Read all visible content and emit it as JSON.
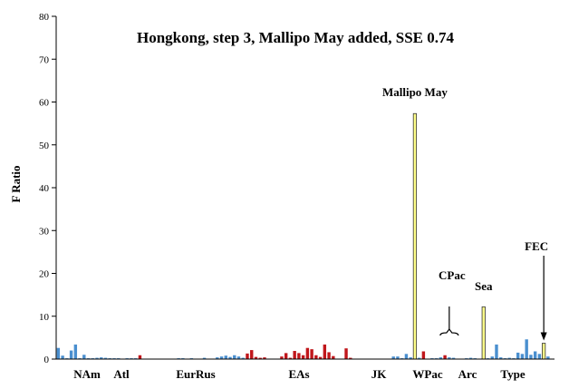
{
  "chart_data": {
    "type": "bar",
    "title": "Hongkong, step 3, Mallipo May added, SSE 0.74",
    "ylabel": "F Ratio",
    "xlabel": "",
    "ylim": [
      0,
      80
    ],
    "yticks": [
      0,
      10,
      20,
      30,
      40,
      50,
      60,
      70,
      80
    ],
    "grid": false,
    "colors": {
      "blue": "#4a8fcf",
      "red": "#c0161b",
      "yellow": "#ffff8a",
      "edge": "#333333"
    },
    "region_labels": [
      "NAm",
      "Atl",
      "EurRus",
      "EAs",
      "JK",
      "WPac",
      "Arc",
      "Type"
    ],
    "annotations": [
      {
        "text": "Mallipo May",
        "target": "Mallipo May"
      },
      {
        "text": "CPac",
        "target": "CPac"
      },
      {
        "text": "Sea",
        "target": "Sea"
      },
      {
        "text": "FEC",
        "target": "FEC"
      }
    ],
    "bars": [
      {
        "i": 0,
        "v": 2.6,
        "c": "blue"
      },
      {
        "i": 1,
        "v": 0.8,
        "c": "blue"
      },
      {
        "i": 2,
        "v": 0.2,
        "c": "blue"
      },
      {
        "i": 3,
        "v": 2.0,
        "c": "blue"
      },
      {
        "i": 4,
        "v": 3.4,
        "c": "blue"
      },
      {
        "i": 5,
        "v": 0.2,
        "c": "blue"
      },
      {
        "i": 6,
        "v": 1.0,
        "c": "blue"
      },
      {
        "i": 7,
        "v": 0.2,
        "c": "blue"
      },
      {
        "i": 8,
        "v": 0.2,
        "c": "blue"
      },
      {
        "i": 9,
        "v": 0.3,
        "c": "blue"
      },
      {
        "i": 10,
        "v": 0.4,
        "c": "blue"
      },
      {
        "i": 11,
        "v": 0.3,
        "c": "blue"
      },
      {
        "i": 12,
        "v": 0.2,
        "c": "blue"
      },
      {
        "i": 13,
        "v": 0.2,
        "c": "blue"
      },
      {
        "i": 14,
        "v": 0.2,
        "c": "blue"
      },
      {
        "i": 15,
        "v": 0.1,
        "c": "blue"
      },
      {
        "i": 16,
        "v": 0.2,
        "c": "blue"
      },
      {
        "i": 17,
        "v": 0.2,
        "c": "blue"
      },
      {
        "i": 18,
        "v": 0.2,
        "c": "blue"
      },
      {
        "i": 19,
        "v": 0.9,
        "c": "red"
      },
      {
        "i": 28,
        "v": 0.2,
        "c": "blue"
      },
      {
        "i": 29,
        "v": 0.2,
        "c": "blue"
      },
      {
        "i": 30,
        "v": 0.1,
        "c": "blue"
      },
      {
        "i": 31,
        "v": 0.2,
        "c": "blue"
      },
      {
        "i": 34,
        "v": 0.3,
        "c": "blue"
      },
      {
        "i": 37,
        "v": 0.4,
        "c": "blue"
      },
      {
        "i": 38,
        "v": 0.6,
        "c": "blue"
      },
      {
        "i": 39,
        "v": 0.8,
        "c": "blue"
      },
      {
        "i": 40,
        "v": 0.5,
        "c": "blue"
      },
      {
        "i": 41,
        "v": 0.9,
        "c": "blue"
      },
      {
        "i": 42,
        "v": 0.6,
        "c": "blue"
      },
      {
        "i": 43,
        "v": 0.3,
        "c": "blue"
      },
      {
        "i": 44,
        "v": 1.3,
        "c": "red"
      },
      {
        "i": 45,
        "v": 2.1,
        "c": "red"
      },
      {
        "i": 46,
        "v": 0.5,
        "c": "red"
      },
      {
        "i": 47,
        "v": 0.3,
        "c": "red"
      },
      {
        "i": 48,
        "v": 0.4,
        "c": "red"
      },
      {
        "i": 52,
        "v": 0.6,
        "c": "red"
      },
      {
        "i": 53,
        "v": 1.4,
        "c": "red"
      },
      {
        "i": 54,
        "v": 0.3,
        "c": "red"
      },
      {
        "i": 55,
        "v": 1.9,
        "c": "red"
      },
      {
        "i": 56,
        "v": 1.4,
        "c": "red"
      },
      {
        "i": 57,
        "v": 0.9,
        "c": "red"
      },
      {
        "i": 58,
        "v": 2.6,
        "c": "red"
      },
      {
        "i": 59,
        "v": 2.3,
        "c": "red"
      },
      {
        "i": 60,
        "v": 0.9,
        "c": "red"
      },
      {
        "i": 61,
        "v": 0.5,
        "c": "red"
      },
      {
        "i": 62,
        "v": 3.4,
        "c": "red"
      },
      {
        "i": 63,
        "v": 1.6,
        "c": "red"
      },
      {
        "i": 64,
        "v": 0.7,
        "c": "red"
      },
      {
        "i": 67,
        "v": 2.5,
        "c": "red"
      },
      {
        "i": 68,
        "v": 0.3,
        "c": "red"
      },
      {
        "i": 71,
        "v": 0.1,
        "c": "blue"
      },
      {
        "i": 76,
        "v": 0.1,
        "c": "blue"
      },
      {
        "i": 78,
        "v": 0.6,
        "c": "blue"
      },
      {
        "i": 79,
        "v": 0.6,
        "c": "blue"
      },
      {
        "i": 80,
        "v": 0.2,
        "c": "blue"
      },
      {
        "i": 81,
        "v": 1.2,
        "c": "blue"
      },
      {
        "i": 82,
        "v": 0.4,
        "c": "blue"
      },
      {
        "i": 83,
        "v": 57.3,
        "c": "yellow",
        "label": "Mallipo May"
      },
      {
        "i": 84,
        "v": 0.3,
        "c": "blue"
      },
      {
        "i": 85,
        "v": 1.8,
        "c": "red"
      },
      {
        "i": 87,
        "v": 0.2,
        "c": "blue"
      },
      {
        "i": 88,
        "v": 0.2,
        "c": "blue"
      },
      {
        "i": 89,
        "v": 0.4,
        "c": "blue"
      },
      {
        "i": 90,
        "v": 0.9,
        "c": "red"
      },
      {
        "i": 91,
        "v": 0.4,
        "c": "blue",
        "label": "CPac"
      },
      {
        "i": 92,
        "v": 0.3,
        "c": "blue"
      },
      {
        "i": 93,
        "v": 0.1,
        "c": "blue"
      },
      {
        "i": 95,
        "v": 0.2,
        "c": "blue"
      },
      {
        "i": 96,
        "v": 0.3,
        "c": "blue"
      },
      {
        "i": 97,
        "v": 0.2,
        "c": "blue"
      },
      {
        "i": 99,
        "v": 12.2,
        "c": "yellow",
        "label": "Sea"
      },
      {
        "i": 100,
        "v": 0.2,
        "c": "blue"
      },
      {
        "i": 101,
        "v": 0.6,
        "c": "blue"
      },
      {
        "i": 102,
        "v": 3.4,
        "c": "blue"
      },
      {
        "i": 103,
        "v": 0.4,
        "c": "blue"
      },
      {
        "i": 104,
        "v": 0.2,
        "c": "blue"
      },
      {
        "i": 105,
        "v": 0.3,
        "c": "blue"
      },
      {
        "i": 106,
        "v": 0.2,
        "c": "blue"
      },
      {
        "i": 107,
        "v": 1.5,
        "c": "blue"
      },
      {
        "i": 108,
        "v": 1.2,
        "c": "blue"
      },
      {
        "i": 109,
        "v": 4.6,
        "c": "blue"
      },
      {
        "i": 110,
        "v": 1.0,
        "c": "blue"
      },
      {
        "i": 111,
        "v": 1.8,
        "c": "blue"
      },
      {
        "i": 112,
        "v": 1.2,
        "c": "blue"
      },
      {
        "i": 113,
        "v": 3.7,
        "c": "yellow",
        "label": "FEC"
      },
      {
        "i": 114,
        "v": 0.6,
        "c": "blue"
      }
    ]
  }
}
